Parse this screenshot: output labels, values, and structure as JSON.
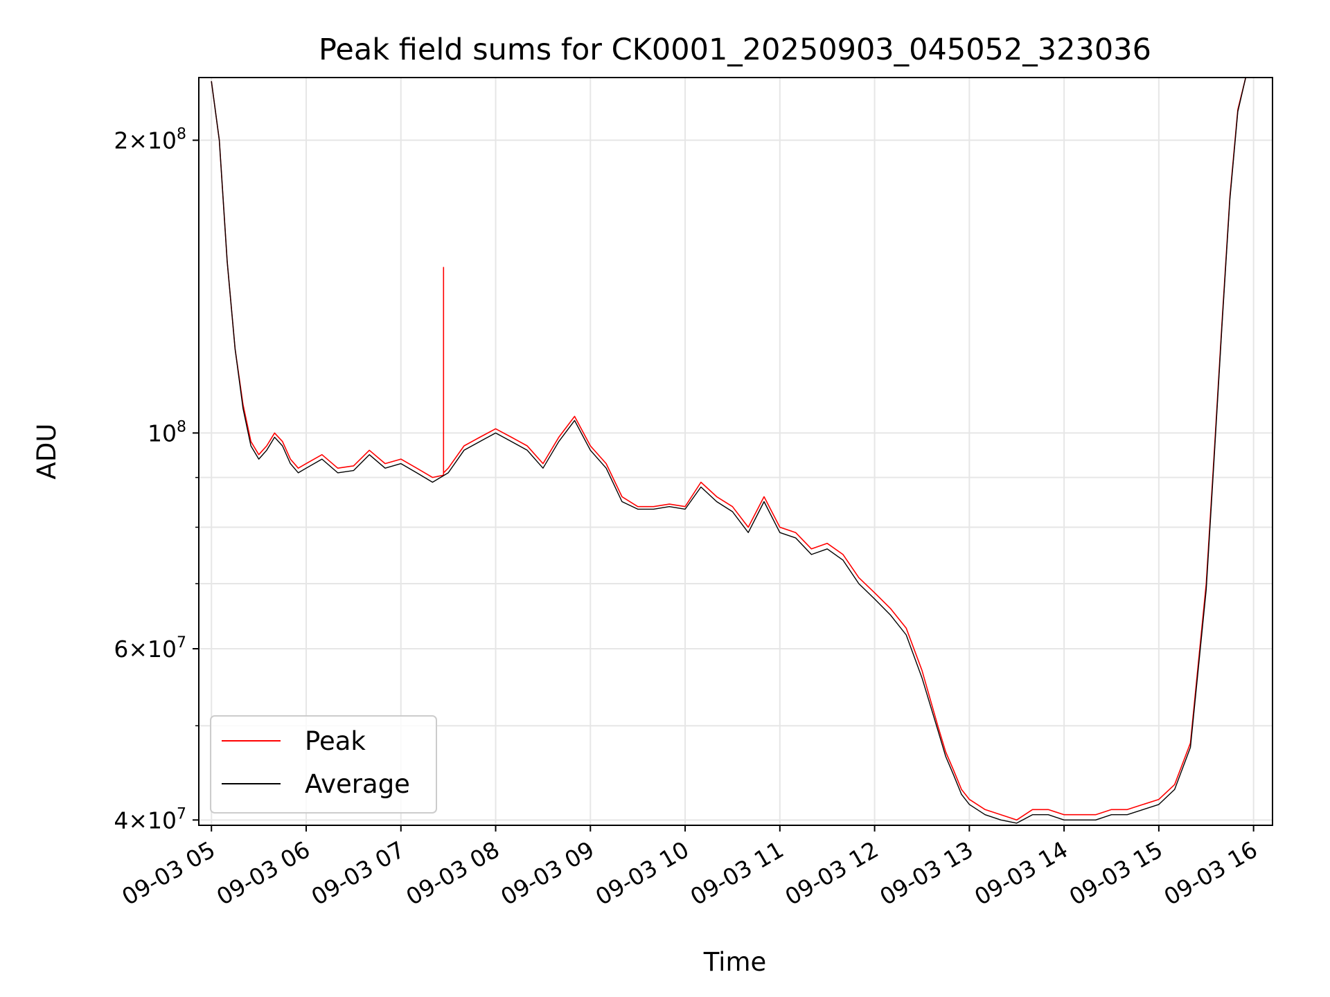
{
  "chart_data": {
    "type": "line",
    "title": "Peak field sums for CK0001_20250903_045052_323036",
    "xlabel": "Time",
    "ylabel": "ADU",
    "yscale": "log",
    "grid": true,
    "legend_placement": "lower-left",
    "xlim": [
      "09-03 04:52",
      "09-03 16:12"
    ],
    "ylim": [
      39500000,
      232000000
    ],
    "x_tick_labels": [
      "09-03 05",
      "09-03 06",
      "09-03 07",
      "09-03 08",
      "09-03 09",
      "09-03 10",
      "09-03 11",
      "09-03 12",
      "09-03 13",
      "09-03 14",
      "09-03 15",
      "09-03 16"
    ],
    "y_tick_labels": [
      {
        "value": 200000000,
        "mantissa": "2",
        "exponent": "8"
      },
      {
        "value": 100000000,
        "mantissa": "",
        "exponent": "8"
      },
      {
        "value": 60000000,
        "mantissa": "6",
        "exponent": "7"
      },
      {
        "value": 40000000,
        "mantissa": "4",
        "exponent": "7"
      }
    ],
    "y_minor_ticks": [
      50000000,
      70000000,
      80000000,
      90000000
    ],
    "series": [
      {
        "name": "Peak",
        "color": "#ff0000",
        "x": [
          "05:00",
          "05:05",
          "05:10",
          "05:15",
          "05:20",
          "05:25",
          "05:30",
          "05:35",
          "05:40",
          "05:45",
          "05:50",
          "05:55",
          "06:00",
          "06:10",
          "06:20",
          "06:30",
          "06:40",
          "06:50",
          "07:00",
          "07:10",
          "07:20",
          "07:27",
          "07:27",
          "07:27",
          "07:30",
          "07:40",
          "07:50",
          "08:00",
          "08:10",
          "08:20",
          "08:30",
          "08:40",
          "08:50",
          "09:00",
          "09:10",
          "09:20",
          "09:30",
          "09:40",
          "09:50",
          "10:00",
          "10:10",
          "10:20",
          "10:30",
          "10:40",
          "10:50",
          "11:00",
          "11:10",
          "11:20",
          "11:30",
          "11:40",
          "11:50",
          "12:00",
          "12:10",
          "12:20",
          "12:30",
          "12:40",
          "12:45",
          "12:50",
          "12:55",
          "13:00",
          "13:10",
          "13:20",
          "13:30",
          "13:40",
          "13:50",
          "14:00",
          "14:10",
          "14:20",
          "14:30",
          "14:40",
          "14:50",
          "15:00",
          "15:10",
          "15:20",
          "15:30",
          "15:35",
          "15:40",
          "15:45",
          "15:50",
          "15:55",
          "16:00"
        ],
        "values": [
          230000000,
          200000000,
          150000000,
          122000000,
          107000000,
          98000000,
          95000000,
          97000000,
          100000000,
          98000000,
          94000000,
          92000000,
          93000000,
          95000000,
          92000000,
          92500000,
          96000000,
          93000000,
          94000000,
          92000000,
          90000000,
          90500000,
          148000000,
          91000000,
          92000000,
          97000000,
          99000000,
          101000000,
          99000000,
          97000000,
          93000000,
          99000000,
          104000000,
          97000000,
          93000000,
          86000000,
          84000000,
          84000000,
          84500000,
          84000000,
          89000000,
          86000000,
          84000000,
          80000000,
          86000000,
          80000000,
          79000000,
          76000000,
          77000000,
          75000000,
          71000000,
          68500000,
          66000000,
          63000000,
          57000000,
          50000000,
          47000000,
          45000000,
          43000000,
          42000000,
          41000000,
          40500000,
          40000000,
          41000000,
          41000000,
          40500000,
          40500000,
          40500000,
          41000000,
          41000000,
          41500000,
          42000000,
          43500000,
          48000000,
          70000000,
          95000000,
          130000000,
          175000000,
          215000000,
          232000000,
          232000000
        ]
      },
      {
        "name": "Average",
        "color": "#000000",
        "x": [
          "05:00",
          "05:05",
          "05:10",
          "05:15",
          "05:20",
          "05:25",
          "05:30",
          "05:35",
          "05:40",
          "05:45",
          "05:50",
          "05:55",
          "06:00",
          "06:10",
          "06:20",
          "06:30",
          "06:40",
          "06:50",
          "07:00",
          "07:10",
          "07:20",
          "07:30",
          "07:40",
          "07:50",
          "08:00",
          "08:10",
          "08:20",
          "08:30",
          "08:40",
          "08:50",
          "09:00",
          "09:10",
          "09:20",
          "09:30",
          "09:40",
          "09:50",
          "10:00",
          "10:10",
          "10:20",
          "10:30",
          "10:40",
          "10:50",
          "11:00",
          "11:10",
          "11:20",
          "11:30",
          "11:40",
          "11:50",
          "12:00",
          "12:10",
          "12:20",
          "12:30",
          "12:40",
          "12:45",
          "12:50",
          "12:55",
          "13:00",
          "13:10",
          "13:20",
          "13:30",
          "13:40",
          "13:50",
          "14:00",
          "14:10",
          "14:20",
          "14:30",
          "14:40",
          "14:50",
          "15:00",
          "15:10",
          "15:20",
          "15:30",
          "15:35",
          "15:40",
          "15:45",
          "15:50",
          "15:55",
          "16:00"
        ],
        "values": [
          230000000,
          200000000,
          150000000,
          122000000,
          106000000,
          97000000,
          94000000,
          96000000,
          99000000,
          97000000,
          93000000,
          91000000,
          92000000,
          94000000,
          91000000,
          91500000,
          95000000,
          92000000,
          93000000,
          91000000,
          89000000,
          91000000,
          96000000,
          98000000,
          100000000,
          98000000,
          96000000,
          92000000,
          98000000,
          103000000,
          96000000,
          92000000,
          85000000,
          83500000,
          83500000,
          84000000,
          83500000,
          88000000,
          85000000,
          83000000,
          79000000,
          85000000,
          79000000,
          78000000,
          75000000,
          76000000,
          74000000,
          70000000,
          67500000,
          65000000,
          62000000,
          56000000,
          49500000,
          46500000,
          44500000,
          42500000,
          41500000,
          40500000,
          40000000,
          39700000,
          40500000,
          40500000,
          40000000,
          40000000,
          40000000,
          40500000,
          40500000,
          41000000,
          41500000,
          43000000,
          47500000,
          69000000,
          94000000,
          129000000,
          174000000,
          214000000,
          232000000,
          232000000
        ]
      }
    ]
  }
}
